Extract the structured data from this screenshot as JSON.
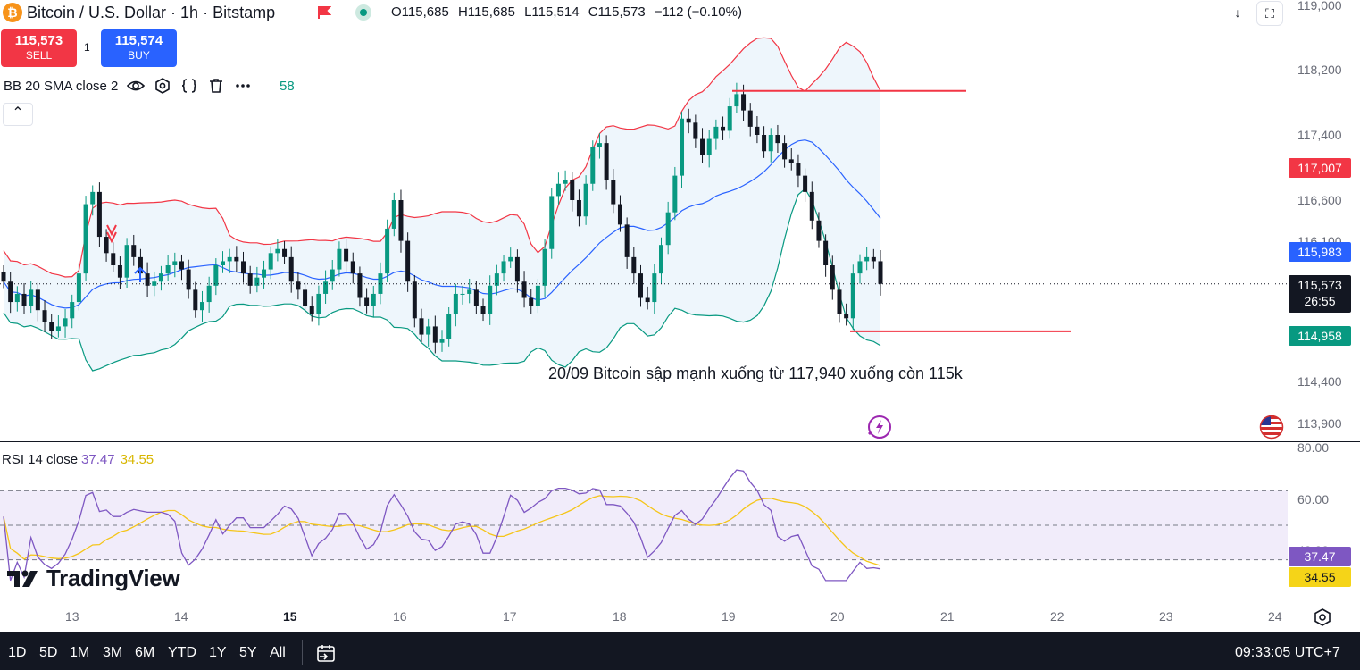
{
  "header": {
    "coin_icon_glyph": "₿",
    "title": "Bitcoin / U.S. Dollar · 1h · Bitstamp",
    "ohlc": {
      "o_label": "O",
      "o": "115,685",
      "h_label": "H",
      "h": "115,685",
      "l_label": "L",
      "l": "115,514",
      "c_label": "C",
      "c": "115,573",
      "change": "−112 (−0.10%)"
    },
    "down_btn_glyph": "↓",
    "fullscreen_btn_glyph": "⛶"
  },
  "trade": {
    "sell_price": "115,573",
    "sell_label": "SELL",
    "spread": "1",
    "buy_price": "115,574",
    "buy_label": "BUY",
    "sell_color": "#f23645",
    "buy_color": "#2962ff"
  },
  "indicator": {
    "label": "BB 20 SMA close 2",
    "trailing_value": "58",
    "collapse_glyph": "⌃"
  },
  "price_axis": {
    "ticks": [
      "119,000",
      "118,200",
      "117,400",
      "116,600",
      "116,100",
      "114,400",
      "113,900"
    ],
    "upper_band_label": "117,007",
    "mid_band_label": "115,983",
    "last_price": "115,573",
    "countdown": "26:55",
    "lower_band_label": "114,958"
  },
  "annotation": "20/09 Bitcoin sập mạnh xuống từ 117,940 xuống còn 115k",
  "rsi": {
    "label": "RSI 14 close",
    "rsi_value": "37.47",
    "ma_value": "34.55",
    "axis_ticks": [
      "80.00",
      "60.00",
      "40.00"
    ],
    "rsi_label": "37.47",
    "ma_label": "34.55"
  },
  "logo": {
    "text": "TradingView"
  },
  "time_axis": [
    "13",
    "14",
    "15",
    "16",
    "17",
    "18",
    "19",
    "20",
    "21",
    "22",
    "23",
    "24"
  ],
  "bottom_bar": {
    "ranges": [
      "1D",
      "5D",
      "1M",
      "3M",
      "6M",
      "YTD",
      "1Y",
      "5Y",
      "All"
    ],
    "clock": "09:33:05 UTC+7"
  },
  "colors": {
    "up": "#089981",
    "down": "#131722",
    "upper_band": "#f23645",
    "basis": "#2962ff",
    "lower_band": "#089981",
    "band_fill": "#eef6fc",
    "rsi": "#7e57c2",
    "rsi_ma": "#f5c518",
    "rsi_fill": "#f1ecfa",
    "label_red": "#f23645",
    "label_blue": "#2962ff",
    "label_green": "#089981"
  },
  "chart_data": {
    "type": "candlestick",
    "symbol": "Bitcoin / U.S. Dollar",
    "interval": "1h",
    "y_range": [
      113700,
      119000
    ],
    "rsi_range": [
      0,
      100
    ],
    "candles_close": [
      115600,
      115350,
      115450,
      115300,
      115500,
      115250,
      115100,
      115000,
      115050,
      115150,
      115350,
      115700,
      116550,
      116700,
      116150,
      115950,
      115800,
      115650,
      116050,
      115900,
      115700,
      115550,
      115600,
      115700,
      115800,
      115850,
      115750,
      115500,
      115250,
      115350,
      115550,
      115800,
      115850,
      115900,
      115850,
      115700,
      115550,
      115650,
      115750,
      115950,
      116000,
      115900,
      115600,
      115500,
      115300,
      115200,
      115450,
      115600,
      115750,
      116000,
      115850,
      115700,
      115400,
      115300,
      115450,
      115700,
      116250,
      116600,
      116100,
      115600,
      115150,
      114950,
      115050,
      114850,
      114900,
      115200,
      115450,
      115450,
      115500,
      115300,
      115200,
      115550,
      115700,
      115850,
      115900,
      115600,
      115400,
      115300,
      115550,
      116000,
      116650,
      116800,
      116850,
      116600,
      116400,
      116800,
      117250,
      117300,
      116850,
      116550,
      116300,
      115900,
      115700,
      115400,
      115350,
      115700,
      116050,
      116450,
      116900,
      117600,
      117550,
      117350,
      117150,
      117350,
      117500,
      117450,
      117750,
      117900,
      117700,
      117500,
      117400,
      117200,
      117400,
      117300,
      117100,
      117050,
      116900,
      116700,
      116350,
      116100,
      115800,
      115500,
      115200,
      115150,
      115700,
      115850,
      115900,
      115850,
      115573
    ],
    "bb_upper_last": 117007,
    "bb_basis_last": 115983,
    "bb_lower_last": 114958,
    "rsi_last": 37.47,
    "rsi_ma_last": 34.55,
    "horizontal_lines": [
      117940,
      114990
    ]
  }
}
